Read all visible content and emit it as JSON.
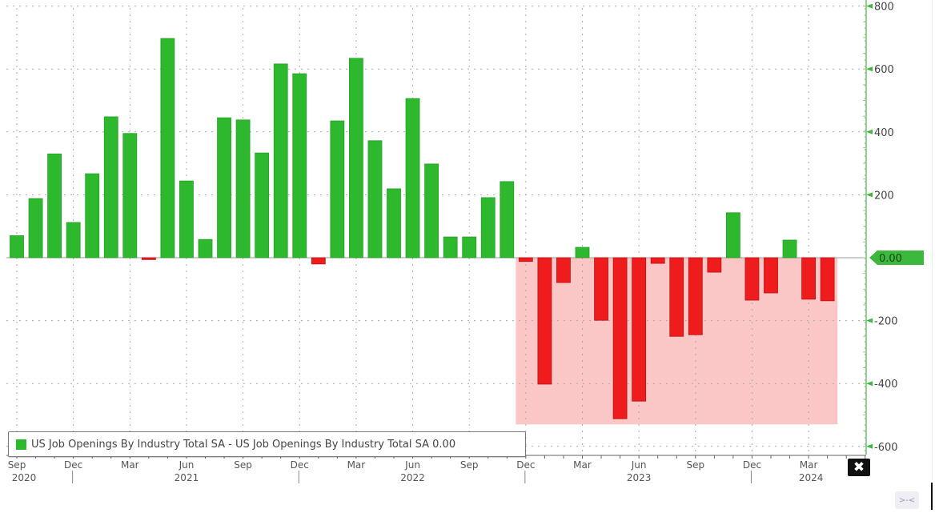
{
  "chart_data": {
    "type": "bar",
    "title": "",
    "xlabel": "",
    "ylabel": "",
    "ylim": [
      -600,
      800
    ],
    "yticks": [
      800,
      600,
      400,
      200,
      0,
      -200,
      -400,
      -600
    ],
    "grid": true,
    "legend_position": "bottom-left",
    "legend": [
      "US Job Openings By Industry Total SA - US Job Openings By Industry Total SA 0.00"
    ],
    "last_value_label": "0.00",
    "categories": [
      "Sep 2020",
      "Oct 2020",
      "Nov 2020",
      "Dec 2020",
      "Jan 2021",
      "Feb 2021",
      "Mar 2021",
      "Apr 2021",
      "May 2021",
      "Jun 2021",
      "Jul 2021",
      "Aug 2021",
      "Sep 2021",
      "Oct 2021",
      "Nov 2021",
      "Dec 2021",
      "Jan 2022",
      "Feb 2022",
      "Mar 2022",
      "Apr 2022",
      "May 2022",
      "Jun 2022",
      "Jul 2022",
      "Aug 2022",
      "Sep 2022",
      "Oct 2022",
      "Nov 2022",
      "Dec 2022",
      "Jan 2023",
      "Feb 2023",
      "Mar 2023",
      "Apr 2023",
      "May 2023",
      "Jun 2023",
      "Jul 2023",
      "Aug 2023",
      "Sep 2023",
      "Oct 2023",
      "Nov 2023",
      "Dec 2023",
      "Jan 2024",
      "Feb 2024",
      "Mar 2024",
      "Apr 2024"
    ],
    "series": [
      {
        "name": "US Job Openings By Industry Total SA",
        "values": [
          70,
          188,
          330,
          112,
          267,
          448,
          395,
          -6,
          697,
          244,
          58,
          445,
          438,
          333,
          616,
          585,
          -20,
          435,
          634,
          372,
          219,
          506,
          298,
          66,
          66,
          191,
          242,
          -12,
          -402,
          -79,
          33,
          -199,
          -512,
          -456,
          -18,
          -250,
          -245,
          -46,
          143,
          -135,
          -112,
          56,
          -132,
          -137
        ],
        "positive_color": "#2db82d",
        "negative_color": "#ee1c1c"
      }
    ],
    "shaded_region": {
      "from": "Dec 2022",
      "to": "Apr 2024",
      "ymin": -530,
      "ymax": 0,
      "color": "#fbc6c6"
    },
    "x_month_ticks": [
      "Sep",
      "Dec",
      "Mar",
      "Jun",
      "Sep",
      "Dec",
      "Mar",
      "Jun",
      "Sep",
      "Dec",
      "Mar",
      "Jun",
      "Sep",
      "Dec",
      "Mar"
    ],
    "x_year_labels": [
      "2020",
      "2021",
      "2022",
      "2023",
      "2024"
    ]
  },
  "ui": {
    "close_icon": "close-icon",
    "close_glyph": "✖",
    "collapse_glyph": ">-<"
  }
}
